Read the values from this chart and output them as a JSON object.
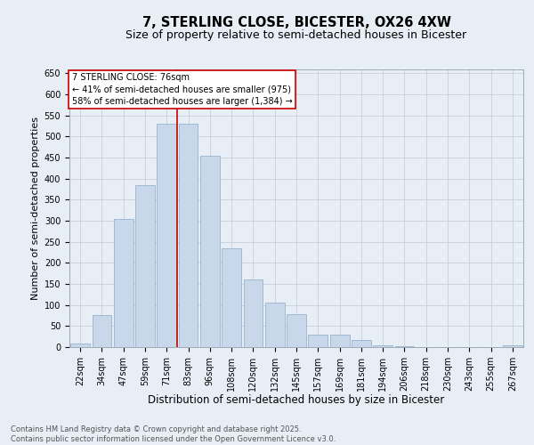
{
  "title1": "7, STERLING CLOSE, BICESTER, OX26 4XW",
  "title2": "Size of property relative to semi-detached houses in Bicester",
  "xlabel": "Distribution of semi-detached houses by size in Bicester",
  "ylabel": "Number of semi-detached properties",
  "annotation_title": "7 STERLING CLOSE: 76sqm",
  "annotation_line1": "← 41% of semi-detached houses are smaller (975)",
  "annotation_line2": "58% of semi-detached houses are larger (1,384) →",
  "categories": [
    "22sqm",
    "34sqm",
    "47sqm",
    "59sqm",
    "71sqm",
    "83sqm",
    "96sqm",
    "108sqm",
    "120sqm",
    "132sqm",
    "145sqm",
    "157sqm",
    "169sqm",
    "181sqm",
    "194sqm",
    "206sqm",
    "218sqm",
    "230sqm",
    "243sqm",
    "255sqm",
    "267sqm"
  ],
  "bar_values": [
    8,
    75,
    305,
    385,
    530,
    530,
    455,
    235,
    160,
    105,
    78,
    30,
    30,
    17,
    5,
    3,
    0,
    0,
    0,
    0,
    4
  ],
  "bar_color": "#c8d8ea",
  "bar_edge_color": "#8aaac8",
  "grid_color": "#c8d0dc",
  "background_color": "#e8eef6",
  "red_line_color": "#cc0000",
  "annotation_box_facecolor": "#ffffff",
  "annotation_box_edgecolor": "#cc0000",
  "ylim": [
    0,
    660
  ],
  "yticks": [
    0,
    50,
    100,
    150,
    200,
    250,
    300,
    350,
    400,
    450,
    500,
    550,
    600,
    650
  ],
  "footer": "Contains HM Land Registry data © Crown copyright and database right 2025.\nContains public sector information licensed under the Open Government Licence v3.0.",
  "title1_fontsize": 10.5,
  "title2_fontsize": 9,
  "xlabel_fontsize": 8.5,
  "ylabel_fontsize": 8,
  "tick_fontsize": 7,
  "annotation_fontsize": 7,
  "footer_fontsize": 6
}
